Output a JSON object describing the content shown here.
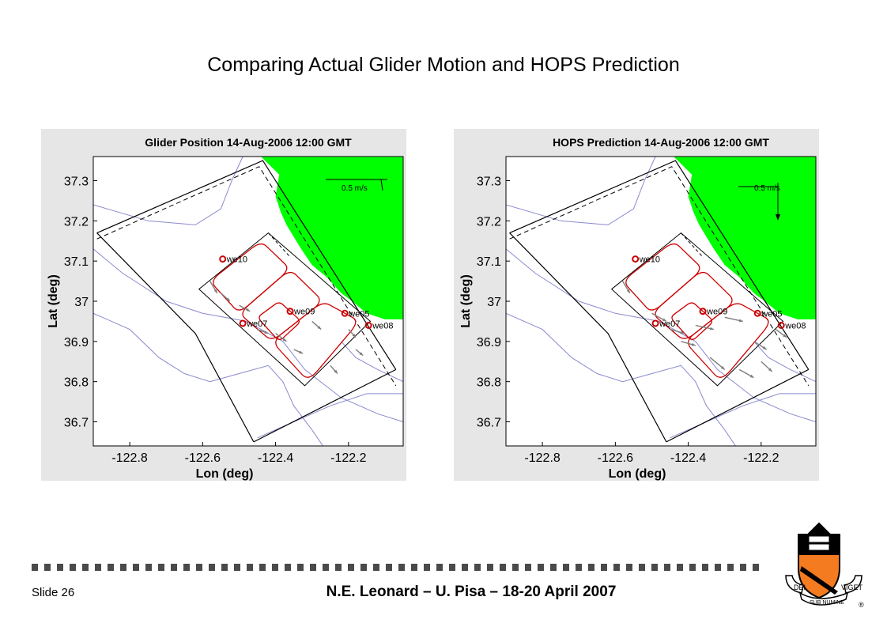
{
  "slide": {
    "title": "Comparing Actual Glider Motion and HOPS Prediction",
    "slide_number": "Slide 26",
    "footer": "N.E. Leonard – U. Pisa – 18-20 April 2007",
    "logo": {
      "name": "princeton-shield-logo",
      "motto_left": "DEI",
      "motto_center": "SUB NUMINE",
      "motto_right": "VIGET",
      "mark": "®"
    }
  },
  "colors": {
    "land": "#00ff00",
    "coast": "#8a8acf",
    "track": "#cc0000",
    "arrow": "#7d7d7d",
    "box": "#000000"
  },
  "chart_data": [
    {
      "type": "map",
      "title": "Glider Position 14-Aug-2006 12:00 GMT",
      "xlabel": "Lon (deg)",
      "ylabel": "Lat (deg)",
      "xlim": [
        -122.9,
        -122.05
      ],
      "ylim": [
        36.64,
        37.36
      ],
      "xticks": [
        "-122.8",
        "-122.6",
        "-122.4",
        "-122.2"
      ],
      "yticks": [
        "36.7",
        "36.8",
        "36.9",
        "37",
        "37.1",
        "37.2",
        "37.3"
      ],
      "scale_label": "0.5 m/s",
      "stations": [
        {
          "name": "we10",
          "lon": -122.545,
          "lat": 37.105
        },
        {
          "name": "we09",
          "lon": -122.36,
          "lat": 36.975
        },
        {
          "name": "we07",
          "lon": -122.49,
          "lat": 36.945
        },
        {
          "name": "we05",
          "lon": -122.21,
          "lat": 36.97
        },
        {
          "name": "we08",
          "lon": -122.145,
          "lat": 36.94
        }
      ]
    },
    {
      "type": "map",
      "title": "HOPS Prediction 14-Aug-2006 12:00 GMT",
      "xlabel": "Lon (deg)",
      "ylabel": "Lat (deg)",
      "xlim": [
        -122.9,
        -122.05
      ],
      "ylim": [
        36.64,
        37.36
      ],
      "xticks": [
        "-122.8",
        "-122.6",
        "-122.4",
        "-122.2"
      ],
      "yticks": [
        "36.7",
        "36.8",
        "36.9",
        "37",
        "37.1",
        "37.2",
        "37.3"
      ],
      "scale_label": "0.5 m/s",
      "stations": [
        {
          "name": "we10",
          "lon": -122.545,
          "lat": 37.105
        },
        {
          "name": "we09",
          "lon": -122.36,
          "lat": 36.975
        },
        {
          "name": "we07",
          "lon": -122.49,
          "lat": 36.945
        },
        {
          "name": "we05",
          "lon": -122.21,
          "lat": 36.97
        },
        {
          "name": "we08",
          "lon": -122.145,
          "lat": 36.94
        }
      ]
    }
  ]
}
